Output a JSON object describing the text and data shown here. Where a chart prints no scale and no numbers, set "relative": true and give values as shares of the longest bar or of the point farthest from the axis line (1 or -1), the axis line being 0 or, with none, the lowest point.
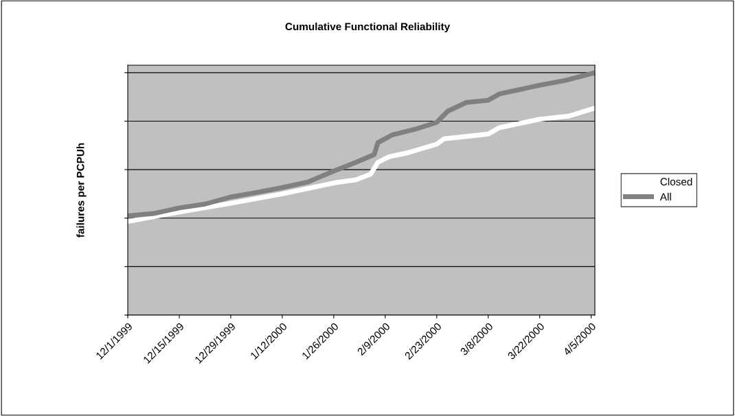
{
  "chart_data": {
    "type": "line",
    "title": "Cumulative Functional Reliability",
    "ylabel": "failures per PCPUh",
    "relative": true,
    "grid": "y",
    "legend": "right",
    "marker": "none",
    "line_style": "solid",
    "xlim": [
      "1999-12-01",
      "2000-04-06"
    ],
    "xticks": [
      {
        "value": "1999-12-01",
        "label": "12/1/1999"
      },
      {
        "value": "1999-12-15",
        "label": "12/15/1999"
      },
      {
        "value": "1999-12-29",
        "label": "12/29/1999"
      },
      {
        "value": "2000-01-12",
        "label": "1/12/2000"
      },
      {
        "value": "2000-01-26",
        "label": "1/26/2000"
      },
      {
        "value": "2000-02-09",
        "label": "2/9/2000"
      },
      {
        "value": "2000-02-23",
        "label": "2/23/2000"
      },
      {
        "value": "2000-03-08",
        "label": "3/8/2000"
      },
      {
        "value": "2000-03-22",
        "label": "3/22/2000"
      },
      {
        "value": "2000-04-05",
        "label": "4/5/2000"
      }
    ],
    "series": [
      {
        "name": "Closed",
        "color": "#ffffff",
        "x": [
          "1999-12-01",
          "1999-12-15",
          "1999-12-29",
          "2000-01-12",
          "2000-01-26",
          "2000-02-01",
          "2000-02-05",
          "2000-02-07",
          "2000-02-10",
          "2000-02-15",
          "2000-02-23",
          "2000-02-25",
          "2000-03-08",
          "2000-03-11",
          "2000-03-22",
          "2000-03-30",
          "2000-04-06"
        ],
        "values": [
          0.386,
          0.425,
          0.461,
          0.5,
          0.545,
          0.558,
          0.581,
          0.63,
          0.653,
          0.669,
          0.705,
          0.727,
          0.747,
          0.773,
          0.808,
          0.821,
          0.854
        ]
      },
      {
        "name": "All",
        "color": "#808080",
        "x": [
          "1999-12-01",
          "1999-12-08",
          "1999-12-15",
          "1999-12-22",
          "1999-12-29",
          "2000-01-05",
          "2000-01-12",
          "2000-01-19",
          "2000-01-26",
          "2000-02-01",
          "2000-02-06",
          "2000-02-07",
          "2000-02-11",
          "2000-02-17",
          "2000-02-23",
          "2000-02-26",
          "2000-03-02",
          "2000-03-08",
          "2000-03-11",
          "2000-03-22",
          "2000-03-29",
          "2000-04-06"
        ],
        "values": [
          0.409,
          0.419,
          0.442,
          0.458,
          0.487,
          0.506,
          0.526,
          0.549,
          0.594,
          0.63,
          0.662,
          0.711,
          0.744,
          0.766,
          0.795,
          0.841,
          0.877,
          0.886,
          0.912,
          0.948,
          0.968,
          1
        ]
      }
    ]
  }
}
